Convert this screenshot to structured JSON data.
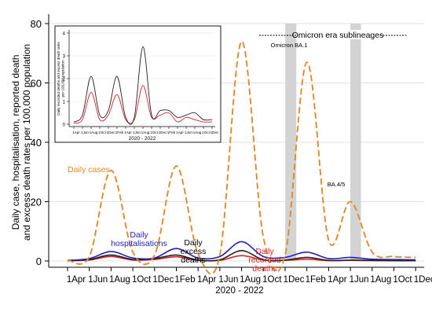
{
  "chart_data": [
    {
      "type": "line",
      "ylabel": "Daily case, hospitalisation, reported death\nand excess death rates per 100,000 population",
      "xlabel": "2020 - 2022",
      "x_ticks": [
        "1Apr",
        "1Jun",
        "1Aug",
        "1Oct",
        "1Dec",
        "1Feb",
        "1Apr",
        "1Jun",
        "1Aug",
        "1Oct",
        "1Dec",
        "1Feb",
        "1Apr",
        "1Jun",
        "1Aug",
        "1Oct",
        "1Dec"
      ],
      "x": [
        "2020-04-01",
        "2020-06-01",
        "2020-08-01",
        "2020-10-01",
        "2020-12-01",
        "2021-02-01",
        "2021-04-01",
        "2021-06-01",
        "2021-08-01",
        "2021-10-01",
        "2021-12-01",
        "2022-02-01",
        "2022-04-01",
        "2022-06-01",
        "2022-08-01",
        "2022-10-01",
        "2022-12-01"
      ],
      "y_ticks": [
        0,
        20,
        40,
        60,
        80
      ],
      "ylim": [
        0,
        80
      ],
      "series": [
        {
          "name": "Daily cases",
          "color": "#e08a2a",
          "dash": true,
          "values": [
            0.3,
            1.5,
            30.5,
            3.0,
            2.0,
            32.0,
            2.5,
            2.0,
            74.0,
            8.0,
            2.0,
            67.0,
            7.0,
            20.0,
            3.0,
            1.5,
            1.2
          ]
        },
        {
          "name": "Daily hospitalisations",
          "color": "#1f1fb4",
          "values": [
            0.2,
            0.8,
            3.2,
            1.0,
            1.0,
            4.2,
            1.0,
            1.5,
            6.5,
            1.5,
            1.2,
            3.0,
            0.8,
            1.2,
            0.6,
            0.5,
            0.4
          ]
        },
        {
          "name": "Daily excess deaths",
          "color": "#222222",
          "values": [
            0.1,
            0.5,
            2.0,
            0.5,
            0.8,
            2.0,
            0.3,
            0.4,
            3.5,
            0.4,
            0.3,
            1.2,
            0.2,
            0.3,
            0.2,
            0.1,
            0.1
          ]
        },
        {
          "name": "Daily recorded deaths",
          "color": "#d62728",
          "values": [
            0.1,
            0.3,
            1.5,
            0.3,
            0.5,
            1.4,
            0.2,
            0.2,
            1.8,
            0.3,
            0.2,
            0.6,
            0.1,
            0.2,
            0.1,
            0.1,
            0.1
          ]
        }
      ],
      "annotations": {
        "cases": "Daily cases",
        "hospitalisations": "Daily\nhospitalisations",
        "excess": "Daily\nexcess\ndeaths",
        "recorded": "Daily\nrecorded\ndeaths",
        "omicron_era": "Omicron era sublineages",
        "ba1": "Omicron BA.1",
        "ba45": "BA.4/5"
      },
      "shaded_periods": [
        {
          "label": "Omicron BA.1",
          "from": "2021-12-01",
          "to": "2022-01-01"
        },
        {
          "label": "BA.4/5",
          "from": "2022-06-01",
          "to": "2022-07-01"
        }
      ]
    },
    {
      "type": "line",
      "ylabel": "Daily recorded deaths and excess death rates\nper 100,000 population",
      "xlabel": "2020 - 2022",
      "x_ticks": [
        "1Apr",
        "1Jun",
        "1Aug",
        "1Oct",
        "1Dec",
        "1Feb",
        "1Apr",
        "1Jun",
        "1Aug",
        "1Oct",
        "1Dec",
        "1Feb",
        "1Apr",
        "1Jun",
        "1Aug",
        "1Oct",
        "1Dec"
      ],
      "y_ticks": [
        0,
        1,
        2,
        3,
        4
      ],
      "ylim": [
        0,
        4
      ],
      "series": [
        {
          "name": "Daily excess deaths",
          "color": "#222222",
          "values": [
            0.1,
            0.4,
            2.1,
            0.4,
            0.6,
            2.1,
            0.3,
            0.3,
            3.4,
            0.4,
            0.6,
            0.6,
            0.3,
            0.4,
            0.5,
            0.2,
            0.2
          ]
        },
        {
          "name": "Daily recorded deaths",
          "color": "#d62728",
          "values": [
            0.05,
            0.2,
            1.4,
            0.2,
            0.4,
            1.3,
            0.2,
            0.2,
            1.7,
            0.3,
            0.4,
            0.5,
            0.1,
            0.3,
            0.2,
            0.1,
            0.1
          ]
        }
      ]
    }
  ]
}
